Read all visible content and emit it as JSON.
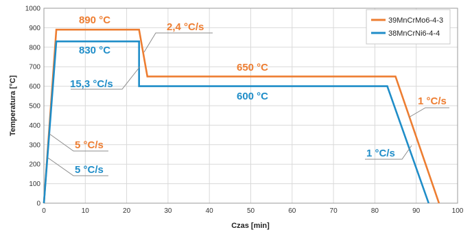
{
  "chart_data": {
    "type": "line",
    "xlabel": "Czas [min]",
    "ylabel": "Temperatura [°C]",
    "xlim": [
      0,
      100
    ],
    "ylim": [
      0,
      1000
    ],
    "xticks": [
      "0",
      "10",
      "20",
      "30",
      "40",
      "50",
      "60",
      "70",
      "80",
      "90",
      "100"
    ],
    "yticks": [
      "0",
      "100",
      "200",
      "300",
      "400",
      "500",
      "600",
      "700",
      "800",
      "900",
      "1000"
    ],
    "grid": true,
    "legend_position": "top-right",
    "series": [
      {
        "name": "39MnCrMo6-4-3",
        "color": "#ed7d31",
        "points": [
          [
            0,
            0
          ],
          [
            3,
            890
          ],
          [
            23,
            890
          ],
          [
            25,
            650
          ],
          [
            85,
            650
          ],
          [
            95.5,
            0
          ]
        ]
      },
      {
        "name": "38MnCrNi6-4-4",
        "color": "#1f8dc8",
        "points": [
          [
            0,
            0
          ],
          [
            3,
            830
          ],
          [
            23,
            830
          ],
          [
            23,
            600
          ],
          [
            83,
            600
          ],
          [
            93,
            0
          ]
        ]
      }
    ],
    "annotations": [
      {
        "text": "890 °C",
        "color": "#ed7d31"
      },
      {
        "text": "830 °C",
        "color": "#1f8dc8"
      },
      {
        "text": "2,4 °C/s",
        "color": "#ed7d31"
      },
      {
        "text": "15,3 °C/s",
        "color": "#1f8dc8"
      },
      {
        "text": "650 °C",
        "color": "#ed7d31"
      },
      {
        "text": "600 °C",
        "color": "#1f8dc8"
      },
      {
        "text": "1 °C/s",
        "color": "#ed7d31"
      },
      {
        "text": "1 °C/s",
        "color": "#1f8dc8"
      },
      {
        "text": "5 °C/s",
        "color": "#ed7d31"
      },
      {
        "text": "5 °C/s",
        "color": "#1f8dc8"
      }
    ]
  }
}
